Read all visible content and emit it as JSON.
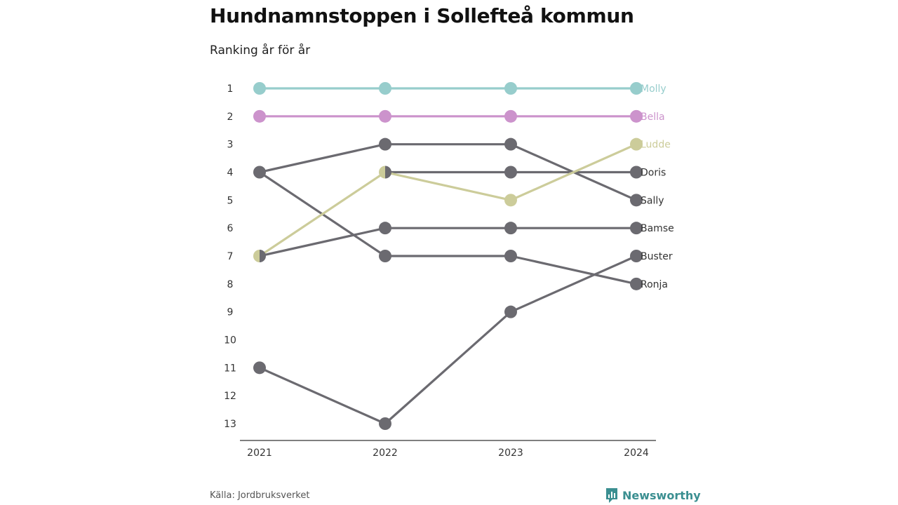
{
  "title": "Hundnamnstoppen i Sollefteå kommun",
  "subtitle": "Ranking år för år",
  "source": "Källa: Jordbruksverket",
  "brand": "Newsworthy",
  "colors": {
    "Molly": "#97cdcc",
    "Bella": "#cc93cc",
    "Ludde": "#cccc9a",
    "other": "#6b6a70",
    "axis": "#333333",
    "label_text": "#333333"
  },
  "chart_data": {
    "type": "line",
    "x": [
      2021,
      2022,
      2023,
      2024
    ],
    "ylim": [
      1,
      13
    ],
    "y_reversed": true,
    "y_ticks": [
      1,
      2,
      3,
      4,
      5,
      6,
      7,
      8,
      9,
      10,
      11,
      12,
      13
    ],
    "xlabel": "",
    "ylabel": "",
    "grid": false,
    "series": [
      {
        "name": "Molly",
        "values": [
          1,
          1,
          1,
          1
        ]
      },
      {
        "name": "Bella",
        "values": [
          2,
          2,
          2,
          2
        ]
      },
      {
        "name": "Ludde",
        "values": [
          7,
          4,
          5,
          3
        ]
      },
      {
        "name": "Doris",
        "values": [
          null,
          4,
          4,
          4
        ]
      },
      {
        "name": "Sally",
        "values": [
          4,
          3,
          3,
          5
        ]
      },
      {
        "name": "Bamse",
        "values": [
          7,
          6,
          6,
          6
        ]
      },
      {
        "name": "Buster",
        "values": [
          11,
          13,
          9,
          7
        ]
      },
      {
        "name": "Ronja",
        "values": [
          4,
          7,
          7,
          8
        ]
      }
    ]
  }
}
